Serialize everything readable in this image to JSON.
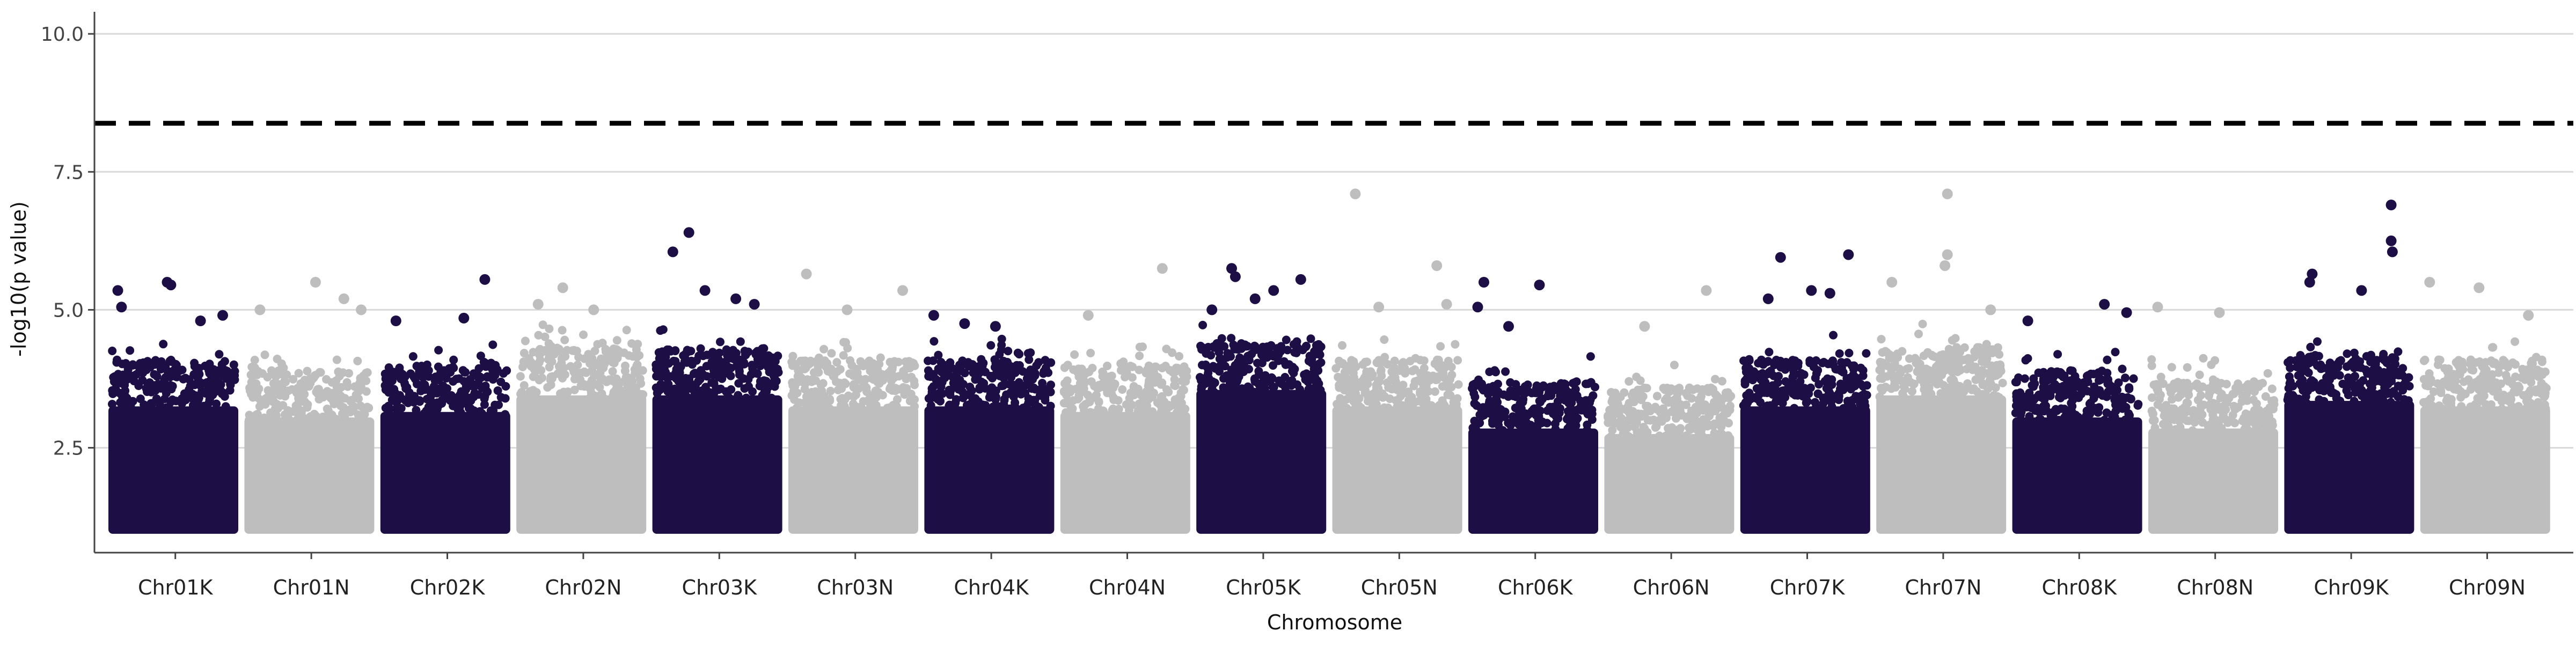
{
  "chart_data": {
    "type": "scatter",
    "subtype": "manhattan",
    "title": "",
    "xlabel": "Chromosome",
    "ylabel": "-log10(p value)",
    "ylim": [
      0.6,
      10.4
    ],
    "yticks": [
      2.5,
      5.0,
      7.5,
      10.0
    ],
    "ytick_labels": [
      "2.5",
      "5.0",
      "7.5",
      "10.0"
    ],
    "grid": "horizontal major",
    "legend": "none",
    "threshold": {
      "value": 8.38,
      "style": "dashed",
      "color": "#000000"
    },
    "colors": {
      "odd": "#1d0f45",
      "even": "#bebebe",
      "grid": "#d9d9d9",
      "axis": "#444444"
    },
    "point_floor": 1.0,
    "categories": [
      "Chr01K",
      "Chr01N",
      "Chr02K",
      "Chr02N",
      "Chr03K",
      "Chr03N",
      "Chr04K",
      "Chr04N",
      "Chr05K",
      "Chr05N",
      "Chr06K",
      "Chr06N",
      "Chr07K",
      "Chr07N",
      "Chr08K",
      "Chr08N",
      "Chr09K",
      "Chr09N"
    ],
    "bulk_top": [
      3.8,
      3.6,
      3.7,
      4.0,
      4.0,
      3.8,
      3.8,
      3.7,
      4.1,
      3.8,
      3.4,
      3.3,
      3.8,
      4.0,
      3.6,
      3.4,
      3.9,
      3.8
    ],
    "peaks": [
      {
        "chr": "Chr01K",
        "pos": 0.05,
        "y": 5.35
      },
      {
        "chr": "Chr01K",
        "pos": 0.08,
        "y": 5.05
      },
      {
        "chr": "Chr01K",
        "pos": 0.45,
        "y": 5.5
      },
      {
        "chr": "Chr01K",
        "pos": 0.48,
        "y": 5.45
      },
      {
        "chr": "Chr01K",
        "pos": 0.72,
        "y": 4.8
      },
      {
        "chr": "Chr01K",
        "pos": 0.9,
        "y": 4.9
      },
      {
        "chr": "Chr01N",
        "pos": 0.1,
        "y": 5.0
      },
      {
        "chr": "Chr01N",
        "pos": 0.55,
        "y": 5.5
      },
      {
        "chr": "Chr01N",
        "pos": 0.78,
        "y": 5.2
      },
      {
        "chr": "Chr01N",
        "pos": 0.92,
        "y": 5.0
      },
      {
        "chr": "Chr02K",
        "pos": 0.1,
        "y": 4.8
      },
      {
        "chr": "Chr02K",
        "pos": 0.65,
        "y": 4.85
      },
      {
        "chr": "Chr02K",
        "pos": 0.82,
        "y": 5.55
      },
      {
        "chr": "Chr02N",
        "pos": 0.35,
        "y": 5.4
      },
      {
        "chr": "Chr02N",
        "pos": 0.15,
        "y": 5.1
      },
      {
        "chr": "Chr02N",
        "pos": 0.6,
        "y": 5.0
      },
      {
        "chr": "Chr03K",
        "pos": 0.14,
        "y": 6.05
      },
      {
        "chr": "Chr03K",
        "pos": 0.27,
        "y": 6.4
      },
      {
        "chr": "Chr03K",
        "pos": 0.4,
        "y": 5.35
      },
      {
        "chr": "Chr03K",
        "pos": 0.65,
        "y": 5.2
      },
      {
        "chr": "Chr03K",
        "pos": 0.8,
        "y": 5.1
      },
      {
        "chr": "Chr03N",
        "pos": 0.12,
        "y": 5.65
      },
      {
        "chr": "Chr03N",
        "pos": 0.9,
        "y": 5.35
      },
      {
        "chr": "Chr03N",
        "pos": 0.45,
        "y": 5.0
      },
      {
        "chr": "Chr04K",
        "pos": 0.05,
        "y": 4.9
      },
      {
        "chr": "Chr04K",
        "pos": 0.55,
        "y": 4.7
      },
      {
        "chr": "Chr04K",
        "pos": 0.3,
        "y": 4.75
      },
      {
        "chr": "Chr04N",
        "pos": 0.8,
        "y": 5.75
      },
      {
        "chr": "Chr04N",
        "pos": 0.2,
        "y": 4.9
      },
      {
        "chr": "Chr05K",
        "pos": 0.1,
        "y": 5.0
      },
      {
        "chr": "Chr05K",
        "pos": 0.26,
        "y": 5.75
      },
      {
        "chr": "Chr05K",
        "pos": 0.29,
        "y": 5.6
      },
      {
        "chr": "Chr05K",
        "pos": 0.45,
        "y": 5.2
      },
      {
        "chr": "Chr05K",
        "pos": 0.82,
        "y": 5.55
      },
      {
        "chr": "Chr05K",
        "pos": 0.6,
        "y": 5.35
      },
      {
        "chr": "Chr05N",
        "pos": 0.16,
        "y": 7.1
      },
      {
        "chr": "Chr05N",
        "pos": 0.35,
        "y": 5.05
      },
      {
        "chr": "Chr05N",
        "pos": 0.82,
        "y": 5.8
      },
      {
        "chr": "Chr05N",
        "pos": 0.9,
        "y": 5.1
      },
      {
        "chr": "Chr06K",
        "pos": 0.1,
        "y": 5.5
      },
      {
        "chr": "Chr06K",
        "pos": 0.05,
        "y": 5.05
      },
      {
        "chr": "Chr06K",
        "pos": 0.55,
        "y": 5.45
      },
      {
        "chr": "Chr06K",
        "pos": 0.3,
        "y": 4.7
      },
      {
        "chr": "Chr06N",
        "pos": 0.8,
        "y": 5.35
      },
      {
        "chr": "Chr06N",
        "pos": 0.3,
        "y": 4.7
      },
      {
        "chr": "Chr07K",
        "pos": 0.3,
        "y": 5.95
      },
      {
        "chr": "Chr07K",
        "pos": 0.85,
        "y": 6.0
      },
      {
        "chr": "Chr07K",
        "pos": 0.2,
        "y": 5.2
      },
      {
        "chr": "Chr07K",
        "pos": 0.55,
        "y": 5.35
      },
      {
        "chr": "Chr07K",
        "pos": 0.7,
        "y": 5.3
      },
      {
        "chr": "Chr07N",
        "pos": 0.55,
        "y": 7.1
      },
      {
        "chr": "Chr07N",
        "pos": 0.55,
        "y": 6.0
      },
      {
        "chr": "Chr07N",
        "pos": 0.53,
        "y": 5.8
      },
      {
        "chr": "Chr07N",
        "pos": 0.1,
        "y": 5.5
      },
      {
        "chr": "Chr07N",
        "pos": 0.9,
        "y": 5.0
      },
      {
        "chr": "Chr08K",
        "pos": 0.72,
        "y": 5.1
      },
      {
        "chr": "Chr08K",
        "pos": 0.1,
        "y": 4.8
      },
      {
        "chr": "Chr08K",
        "pos": 0.9,
        "y": 4.95
      },
      {
        "chr": "Chr08N",
        "pos": 0.05,
        "y": 5.05
      },
      {
        "chr": "Chr08N",
        "pos": 0.55,
        "y": 4.95
      },
      {
        "chr": "Chr09K",
        "pos": 0.2,
        "y": 5.65
      },
      {
        "chr": "Chr09K",
        "pos": 0.18,
        "y": 5.5
      },
      {
        "chr": "Chr09K",
        "pos": 0.84,
        "y": 6.9
      },
      {
        "chr": "Chr09K",
        "pos": 0.84,
        "y": 6.25
      },
      {
        "chr": "Chr09K",
        "pos": 0.85,
        "y": 6.05
      },
      {
        "chr": "Chr09K",
        "pos": 0.6,
        "y": 5.35
      },
      {
        "chr": "Chr09N",
        "pos": 0.05,
        "y": 5.5
      },
      {
        "chr": "Chr09N",
        "pos": 0.45,
        "y": 5.4
      },
      {
        "chr": "Chr09N",
        "pos": 0.85,
        "y": 4.9
      }
    ]
  }
}
